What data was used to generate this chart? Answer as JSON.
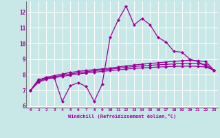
{
  "xlabel": "Windchill (Refroidissement éolien,°C)",
  "x": [
    0,
    1,
    2,
    3,
    4,
    5,
    6,
    7,
    8,
    9,
    10,
    11,
    12,
    13,
    14,
    15,
    16,
    17,
    18,
    19,
    20,
    21,
    22,
    23
  ],
  "line1": [
    7.0,
    7.7,
    7.8,
    7.8,
    6.3,
    7.3,
    7.5,
    7.25,
    6.3,
    7.4,
    10.4,
    11.5,
    12.4,
    11.2,
    11.6,
    11.2,
    10.4,
    10.1,
    9.5,
    9.45,
    9.0,
    8.85,
    8.55,
    8.3
  ],
  "line2": [
    7.0,
    7.65,
    7.85,
    7.95,
    8.05,
    8.15,
    8.22,
    8.28,
    8.33,
    8.38,
    8.43,
    8.5,
    8.57,
    8.63,
    8.68,
    8.73,
    8.77,
    8.82,
    8.86,
    8.9,
    8.93,
    8.9,
    8.85,
    8.3
  ],
  "line3": [
    7.0,
    7.58,
    7.78,
    7.88,
    7.97,
    8.06,
    8.13,
    8.2,
    8.26,
    8.31,
    8.36,
    8.42,
    8.48,
    8.53,
    8.57,
    8.61,
    8.64,
    8.67,
    8.7,
    8.72,
    8.73,
    8.71,
    8.67,
    8.3
  ],
  "line4": [
    7.0,
    7.52,
    7.72,
    7.82,
    7.9,
    7.98,
    8.05,
    8.12,
    8.17,
    8.22,
    8.27,
    8.32,
    8.37,
    8.41,
    8.44,
    8.47,
    8.5,
    8.52,
    8.54,
    8.55,
    8.56,
    8.54,
    8.5,
    8.3
  ],
  "line_color": "#990099",
  "bg_color": "#c8e8e8",
  "plot_bg": "#c8e8e8",
  "grid_color": "#b0d8d8",
  "ylim_bottom": 5.9,
  "ylim_top": 12.7,
  "yticks": [
    6,
    7,
    8,
    9,
    10,
    11,
    12
  ],
  "xticks": [
    0,
    1,
    2,
    3,
    4,
    5,
    6,
    7,
    8,
    9,
    10,
    11,
    12,
    13,
    14,
    15,
    16,
    17,
    18,
    19,
    20,
    21,
    22,
    23
  ]
}
